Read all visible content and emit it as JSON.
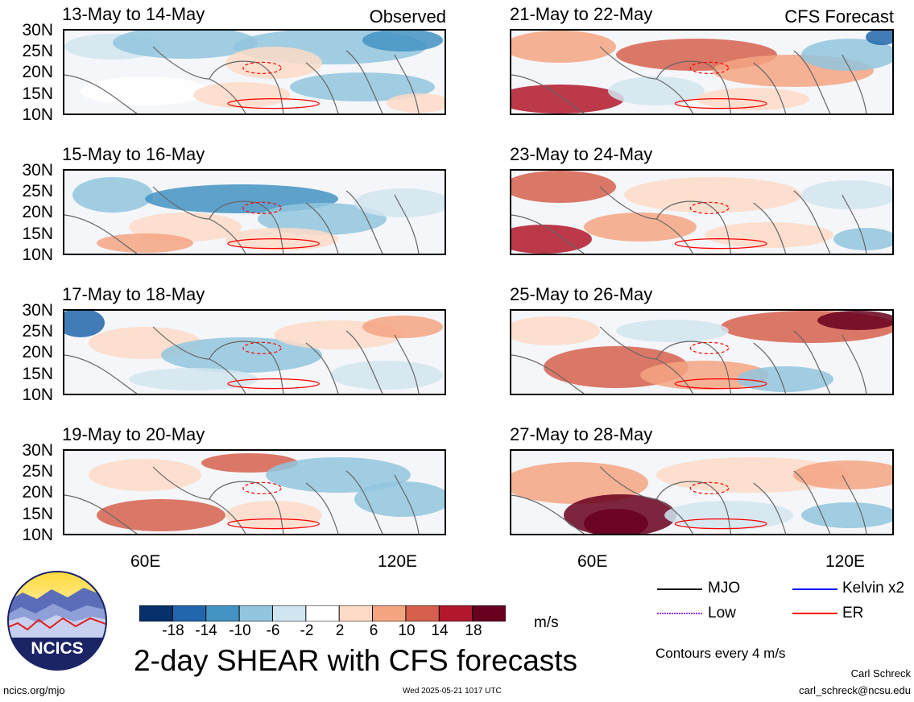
{
  "tags": {
    "observed": "Observed",
    "forecast": "CFS Forecast"
  },
  "panels": [
    {
      "title": "13-May to 14-May",
      "type": "observed"
    },
    {
      "title": "15-May to 16-May",
      "type": "observed"
    },
    {
      "title": "17-May to 18-May",
      "type": "observed"
    },
    {
      "title": "19-May to 20-May",
      "type": "observed"
    },
    {
      "title": "21-May to 22-May",
      "type": "forecast"
    },
    {
      "title": "23-May to 24-May",
      "type": "forecast"
    },
    {
      "title": "25-May to 26-May",
      "type": "forecast"
    },
    {
      "title": "27-May to 28-May",
      "type": "forecast"
    }
  ],
  "lat_labels": [
    "30N",
    "25N",
    "20N",
    "15N",
    "10N"
  ],
  "lon_labels": [
    "60E",
    "120E"
  ],
  "colorbar": {
    "levels": [
      "-18",
      "-14",
      "-10",
      "-6",
      "-2",
      "2",
      "6",
      "10",
      "14",
      "18"
    ],
    "colors": [
      "#08306b",
      "#2166ac",
      "#4393c3",
      "#92c5de",
      "#d1e5f0",
      "#ffffff",
      "#fddbc7",
      "#f4a582",
      "#d6604d",
      "#b2182b",
      "#67001f"
    ],
    "units": "m/s"
  },
  "legend": {
    "items": [
      {
        "label": "MJO",
        "color": "#000000",
        "style": "solid"
      },
      {
        "label": "Kelvin x2",
        "color": "#0000ff",
        "style": "solid"
      },
      {
        "label": "Low",
        "color": "#9933ff",
        "style": "dotted"
      },
      {
        "label": "ER",
        "color": "#ff0000",
        "style": "solid"
      }
    ],
    "contours": "Contours every 4 m/s"
  },
  "footer": {
    "main_title": "2-day SHEAR with CFS forecasts",
    "logo_text": "NCICS",
    "url": "ncics.org/mjo",
    "timestamp": "Wed 2025-05-21 1017 UTC",
    "author": "Carl Schreck",
    "email": "carl_schreck@ncsu.edu"
  }
}
